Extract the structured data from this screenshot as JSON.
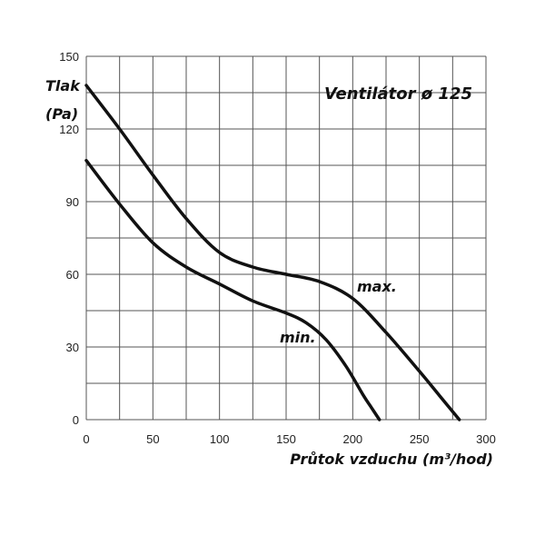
{
  "chart_data": {
    "type": "line",
    "title": "Ventilátor ø 125",
    "ylabel_line1": "Tlak",
    "ylabel_line2": "(Pa)",
    "xlabel": "Průtok vzduchu (m³/hod)",
    "xlim": [
      0,
      300
    ],
    "ylim": [
      0,
      150
    ],
    "x_ticks": [
      0,
      50,
      100,
      150,
      200,
      250,
      300
    ],
    "y_ticks": [
      0,
      30,
      60,
      90,
      120,
      150
    ],
    "grid": true,
    "series": [
      {
        "name": "max.",
        "points": [
          [
            0,
            138
          ],
          [
            25,
            120
          ],
          [
            50,
            101
          ],
          [
            75,
            83
          ],
          [
            100,
            69
          ],
          [
            125,
            63
          ],
          [
            150,
            60
          ],
          [
            175,
            57
          ],
          [
            200,
            50
          ],
          [
            225,
            36
          ],
          [
            250,
            20
          ],
          [
            265,
            10
          ],
          [
            280,
            0
          ]
        ]
      },
      {
        "name": "min.",
        "points": [
          [
            0,
            107
          ],
          [
            25,
            89
          ],
          [
            50,
            73
          ],
          [
            75,
            63
          ],
          [
            100,
            56
          ],
          [
            125,
            49
          ],
          [
            150,
            44
          ],
          [
            165,
            40
          ],
          [
            180,
            33
          ],
          [
            195,
            22
          ],
          [
            208,
            10
          ],
          [
            214,
            5
          ],
          [
            220,
            0
          ]
        ]
      }
    ]
  }
}
